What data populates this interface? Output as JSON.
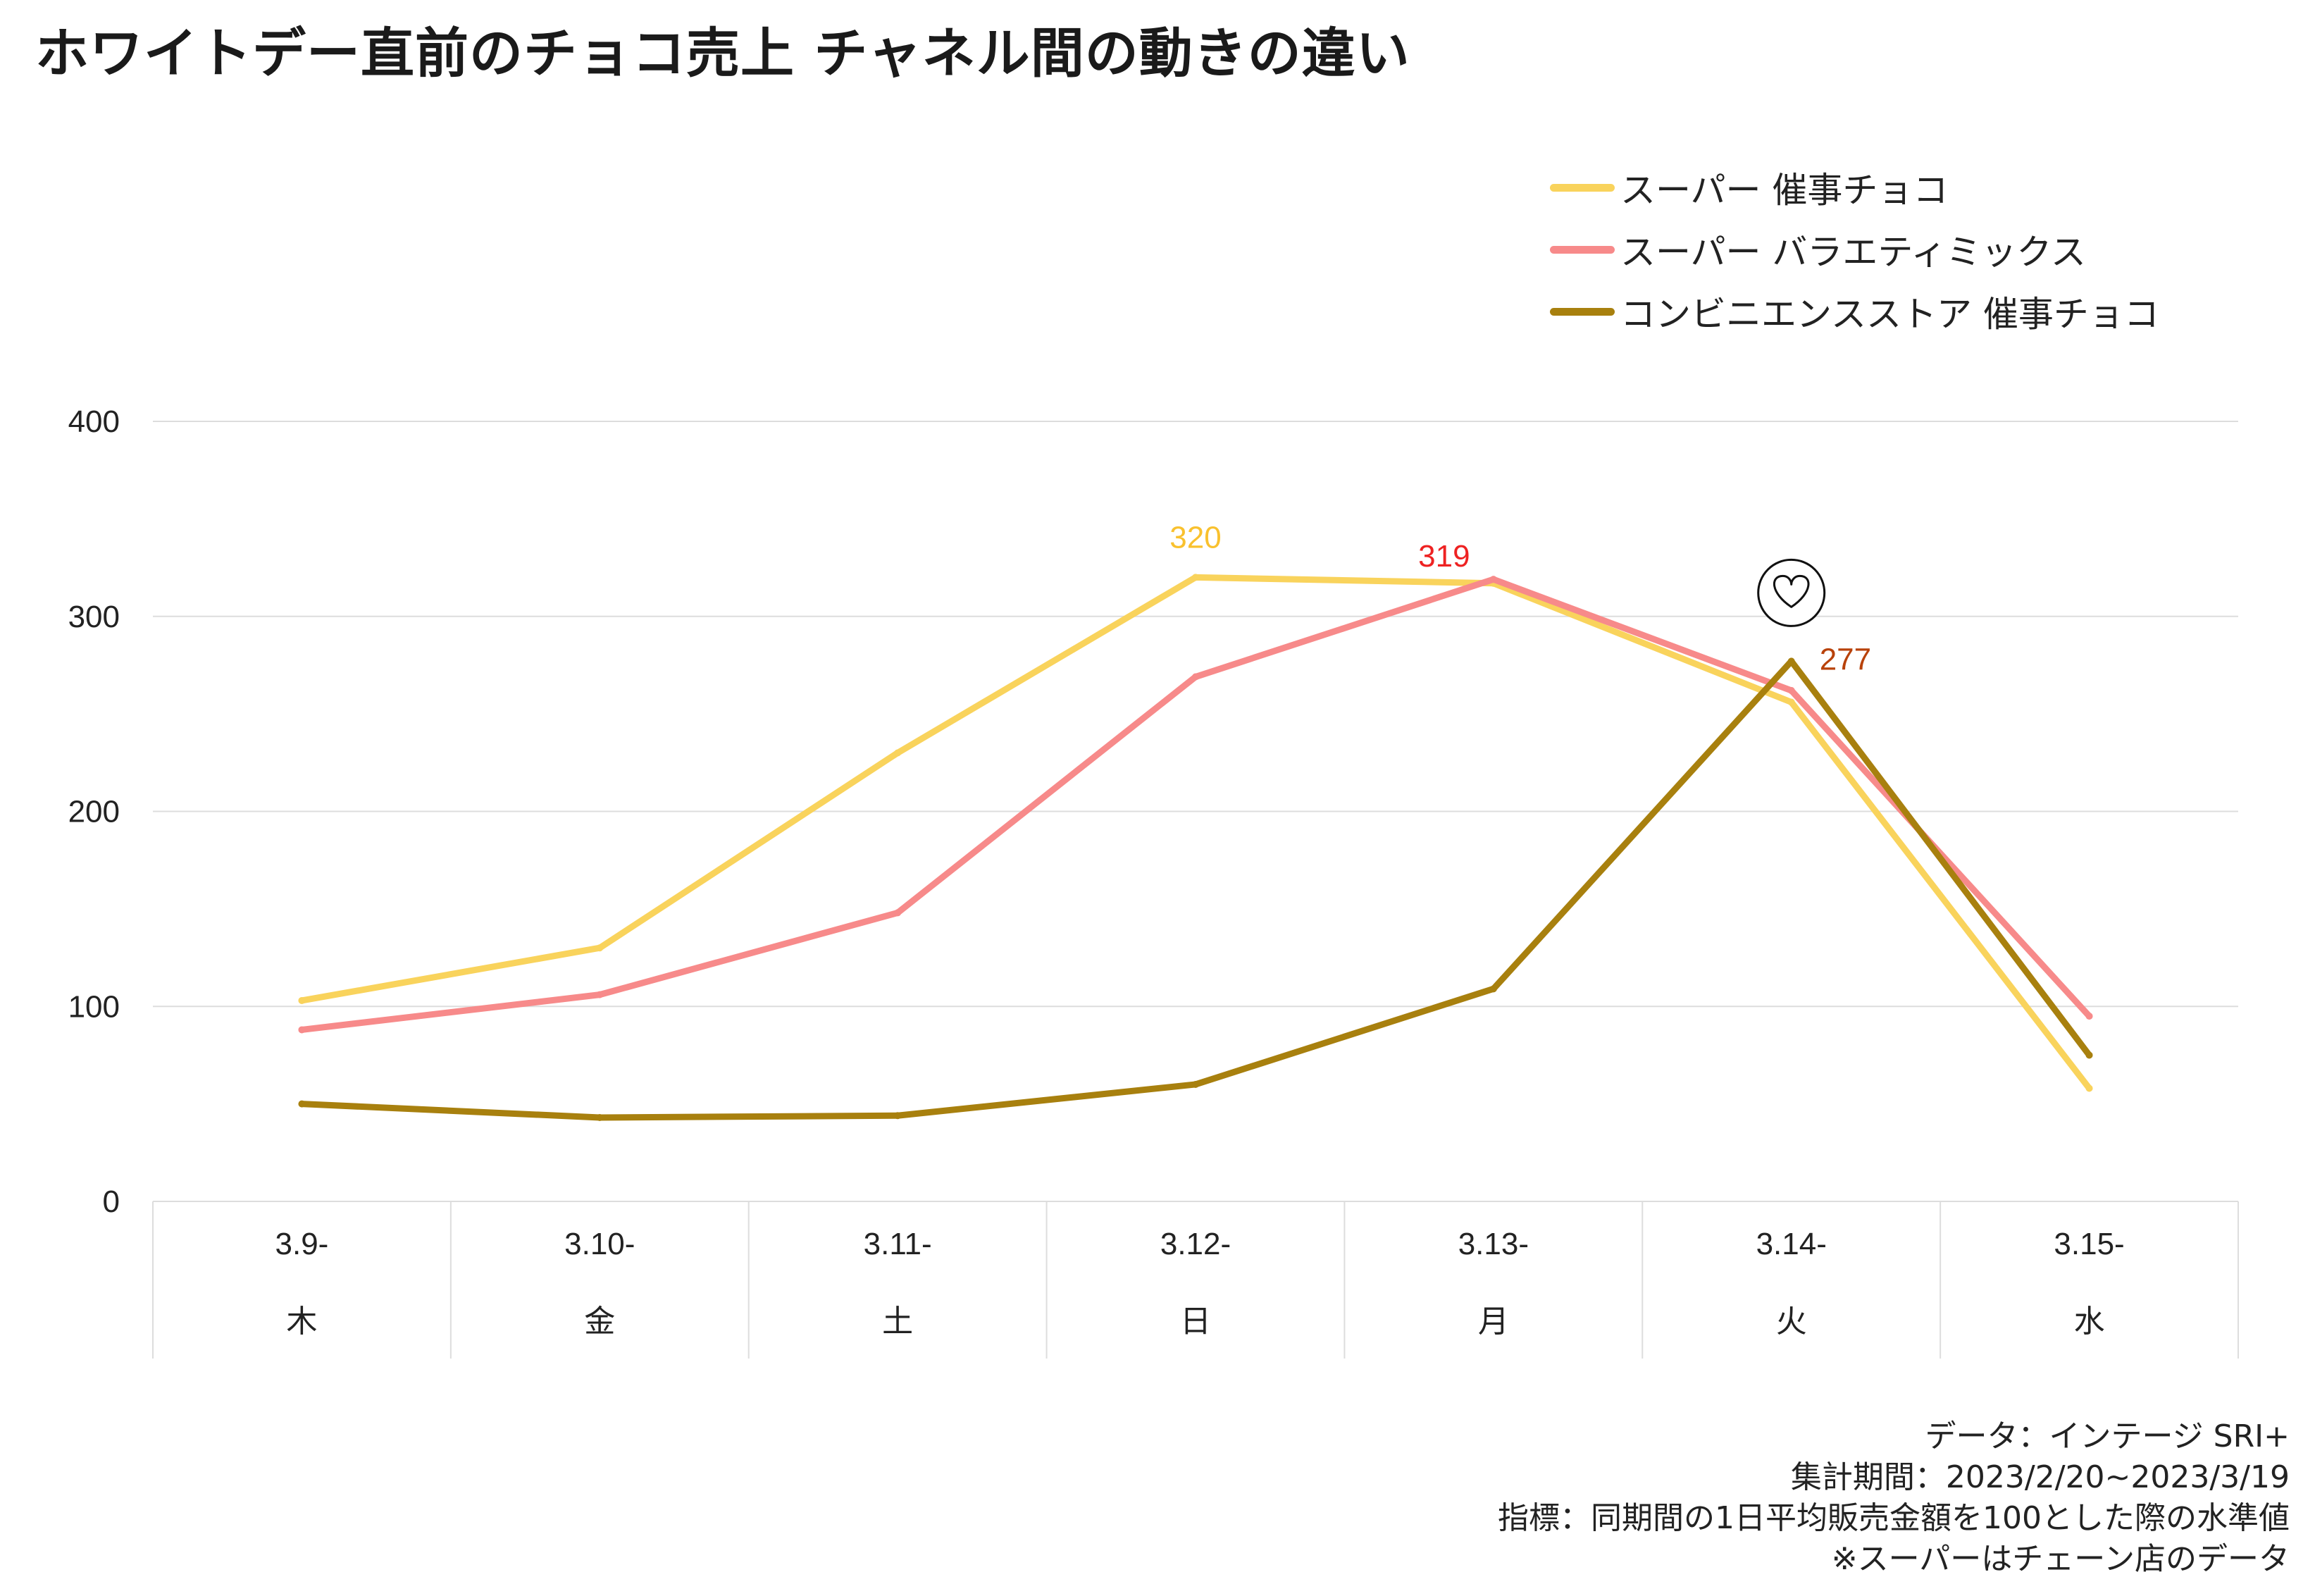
{
  "title": "ホワイトデー直前のチョコ売上 チャネル間の動きの違い",
  "colors": {
    "super_event": "#f9d35c",
    "super_variety": "#f78a8a",
    "conveni_event": "#a8800e",
    "grid": "#dddddd",
    "label_red": "#ee2222",
    "label_brown": "#b8420a"
  },
  "chart_data": {
    "type": "line",
    "categories": [
      "3.9-",
      "3.10-",
      "3.11-",
      "3.12-",
      "3.13-",
      "3.14-",
      "3.15-"
    ],
    "weekdays": [
      "木",
      "金",
      "土",
      "日",
      "月",
      "火",
      "水"
    ],
    "ylim": [
      0,
      400
    ],
    "yticks": [
      "0",
      "100",
      "200",
      "300",
      "400"
    ],
    "grid": true,
    "legend_position": "top-right",
    "series": [
      {
        "name": "スーパー 催事チョコ",
        "color": "#f9d35c",
        "values": [
          103,
          130,
          230,
          320,
          317,
          256,
          58
        ]
      },
      {
        "name": "スーパー バラエティミックス",
        "color": "#f78a8a",
        "values": [
          88,
          106,
          148,
          269,
          319,
          262,
          95
        ]
      },
      {
        "name": "コンビニエンスストア 催事チョコ",
        "color": "#a8800e",
        "values": [
          50,
          43,
          44,
          60,
          109,
          277,
          75
        ]
      }
    ],
    "annotations": [
      {
        "text": "320",
        "series": 0,
        "index": 3,
        "color": "#f9c12e"
      },
      {
        "text": "319",
        "series": 1,
        "index": 4,
        "color": "#ee2222"
      },
      {
        "text": "277",
        "series": 2,
        "index": 5,
        "color": "#b8420a"
      }
    ],
    "heart_icon": {
      "series": 2,
      "index": 5
    }
  },
  "footnotes": [
    "データ：インテージ SRI+",
    "集計期間：2023/2/20~2023/3/19",
    "指標：同期間の1日平均販売金額を100とした際の水準値",
    "※スーパーはチェーン店のデータ"
  ]
}
